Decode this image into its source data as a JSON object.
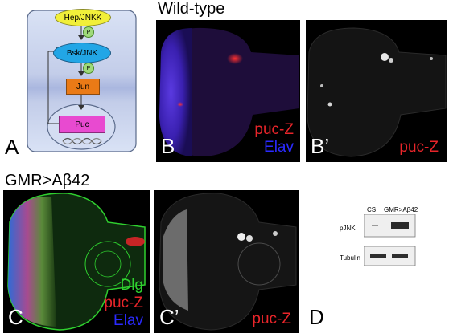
{
  "panel_a": {
    "letter": "A",
    "nodes": {
      "hep": "Hep/JNKK",
      "bsk": "Bsk/JNK",
      "jun": "Jun",
      "puc": "Puc",
      "p1": "P",
      "p2": "P"
    },
    "colors": {
      "membrane": "#c8d3ee",
      "cell_border": "#5a6a8a",
      "hep": "#f1ef3a",
      "bsk": "#22a6e6",
      "jun": "#ea7a16",
      "puc": "#e84ad0",
      "phospho": "#9fda7a"
    }
  },
  "panel_b": {
    "letter": "B",
    "header": "Wild-type",
    "stain_1": "puc-Z",
    "stain_2": "Elav"
  },
  "panel_b_prime": {
    "letter": "B’",
    "stain": "puc-Z"
  },
  "row2": {
    "header": "GMR>Aβ42"
  },
  "panel_c": {
    "letter": "C",
    "stain_1": "Dlg",
    "stain_2": "puc-Z",
    "stain_3": "Elav"
  },
  "panel_c_prime": {
    "letter": "C’",
    "stain": "puc-Z"
  },
  "panel_d": {
    "letter": "D",
    "lane_1": "CS",
    "lane_2": "GMR>Aβ42",
    "row_1": "pJNK",
    "row_2": "Tubulin"
  }
}
